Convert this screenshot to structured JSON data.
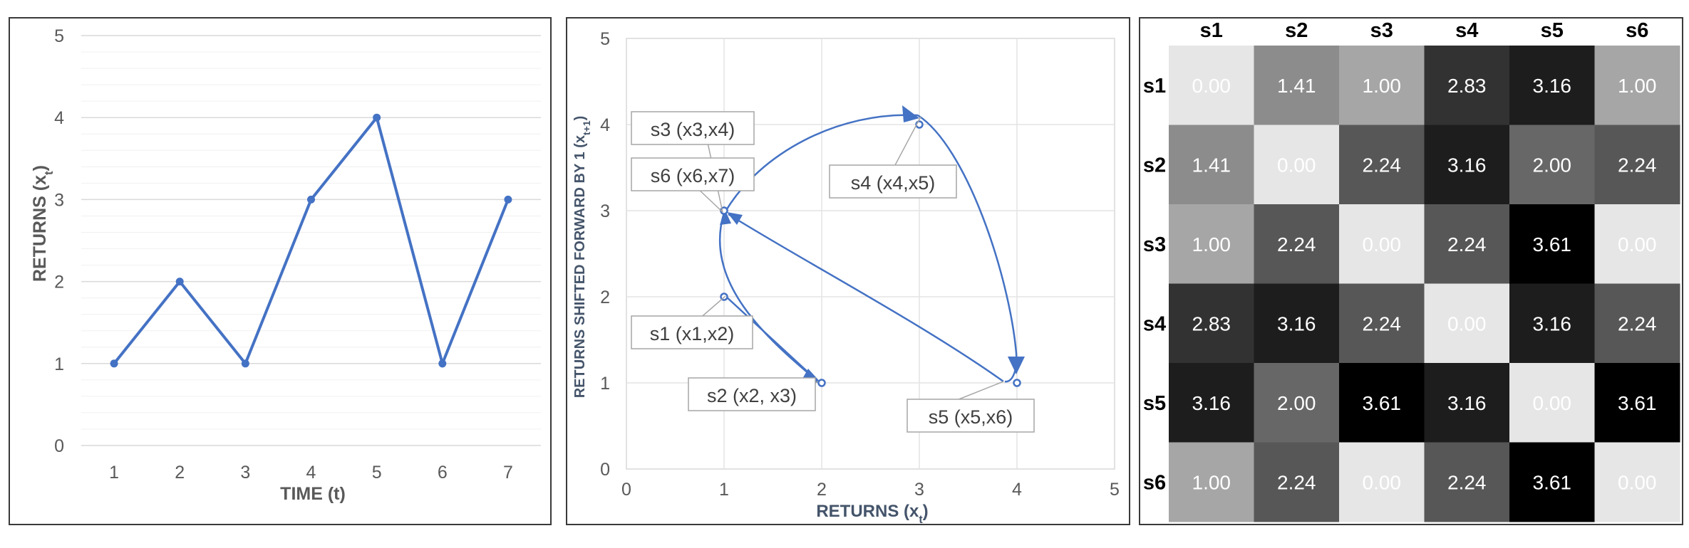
{
  "chart_data": [
    {
      "type": "line",
      "xlabel": "TIME (t)",
      "ylabel_main": "RETURNS (x",
      "ylabel_sub": "t",
      "ylabel_end": ")",
      "x": [
        1,
        2,
        3,
        4,
        5,
        6,
        7
      ],
      "y": [
        1,
        2,
        1,
        3,
        4,
        1,
        3
      ],
      "x_ticks": [
        "1",
        "2",
        "3",
        "4",
        "5",
        "6",
        "7"
      ],
      "ylim": [
        0,
        5
      ],
      "y_ticks": [
        "0",
        "1",
        "2",
        "3",
        "4",
        "5"
      ],
      "grid": true,
      "color": "#4472c4"
    },
    {
      "type": "scatter",
      "xlabel_main": "RETURNS (x",
      "xlabel_sub": "t",
      "xlabel_end": ")",
      "ylabel_main": "RETURNS SHIFTED FORWARD BY 1  (x",
      "ylabel_sub": "t+1",
      "ylabel_end": ")",
      "xlim": [
        0,
        5
      ],
      "ylim": [
        0,
        5
      ],
      "x_ticks": [
        "0",
        "1",
        "2",
        "3",
        "4",
        "5"
      ],
      "y_ticks": [
        "0",
        "1",
        "2",
        "3",
        "4",
        "5"
      ],
      "grid": true,
      "color": "#4472c4",
      "points": [
        {
          "label": "s1 (x1,x2)",
          "x": 1,
          "y": 2
        },
        {
          "label": "s2 (x2, x3)",
          "x": 2,
          "y": 1
        },
        {
          "label": "s3 (x3,x4)",
          "x": 1,
          "y": 3
        },
        {
          "label": "s4 (x4,x5)",
          "x": 3,
          "y": 4
        },
        {
          "label": "s5 (x5,x6)",
          "x": 4,
          "y": 1
        },
        {
          "label": "s6 (x6,x7)",
          "x": 1,
          "y": 3
        }
      ]
    },
    {
      "type": "heatmap",
      "row_labels": [
        "s1",
        "s2",
        "s3",
        "s4",
        "s5",
        "s6"
      ],
      "col_labels": [
        "s1",
        "s2",
        "s3",
        "s4",
        "s5",
        "s6"
      ],
      "values": [
        [
          "0.00",
          "1.41",
          "1.00",
          "2.83",
          "3.16",
          "1.00"
        ],
        [
          "1.41",
          "0.00",
          "2.24",
          "3.16",
          "2.00",
          "2.24"
        ],
        [
          "1.00",
          "2.24",
          "0.00",
          "2.24",
          "3.61",
          "0.00"
        ],
        [
          "2.83",
          "3.16",
          "2.24",
          "0.00",
          "3.16",
          "2.24"
        ],
        [
          "3.16",
          "2.00",
          "3.61",
          "3.16",
          "0.00",
          "3.61"
        ],
        [
          "1.00",
          "2.24",
          "0.00",
          "2.24",
          "3.61",
          "0.00"
        ]
      ],
      "vmin": 0,
      "vmax": 3.61,
      "color_low": "#e6e6e6",
      "color_high": "#000000"
    }
  ]
}
